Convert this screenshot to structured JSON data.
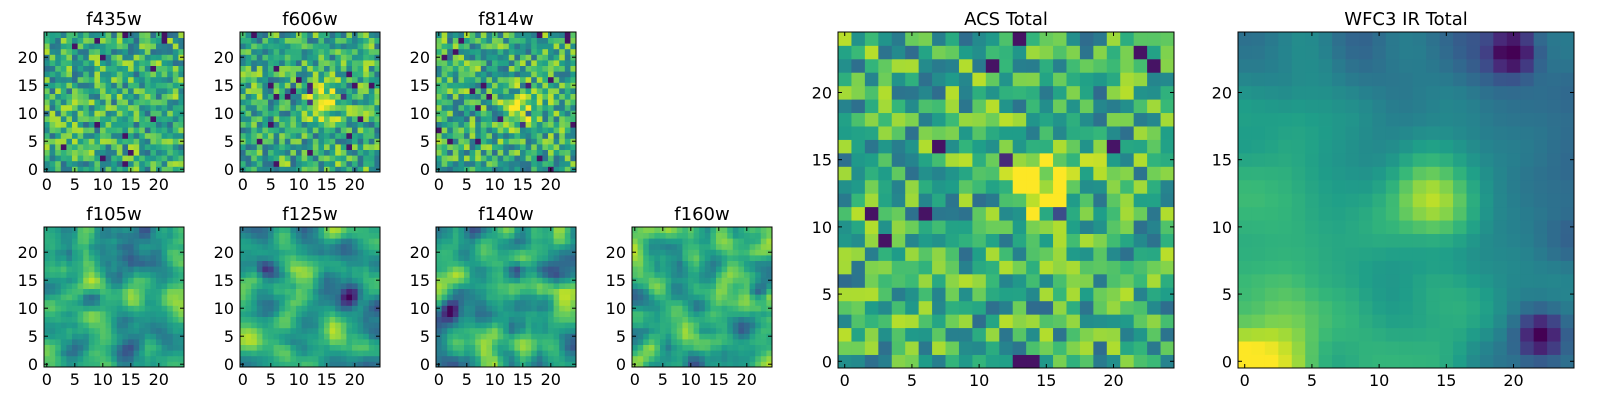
{
  "chart_data": [
    {
      "type": "heatmap",
      "title": "f435w",
      "xlim": [
        0,
        24
      ],
      "ylim": [
        0,
        24
      ],
      "x_ticks": [
        "0",
        "5",
        "10",
        "15",
        "20"
      ],
      "y_ticks": [
        "0",
        "5",
        "10",
        "15",
        "20"
      ],
      "smoothness": 0,
      "hot_spots": [],
      "cold_spots": [],
      "seed": 11
    },
    {
      "type": "heatmap",
      "title": "f606w",
      "xlim": [
        0,
        24
      ],
      "ylim": [
        0,
        24
      ],
      "x_ticks": [
        "0",
        "5",
        "10",
        "15",
        "20"
      ],
      "y_ticks": [
        "0",
        "5",
        "10",
        "15",
        "20"
      ],
      "smoothness": 0,
      "hot_spots": [
        [
          15,
          12
        ]
      ],
      "cold_spots": [],
      "seed": 23
    },
    {
      "type": "heatmap",
      "title": "f814w",
      "xlim": [
        0,
        24
      ],
      "ylim": [
        0,
        24
      ],
      "x_ticks": [
        "0",
        "5",
        "10",
        "15",
        "20"
      ],
      "y_ticks": [
        "0",
        "5",
        "10",
        "15",
        "20"
      ],
      "smoothness": 0,
      "hot_spots": [
        [
          15,
          11
        ]
      ],
      "cold_spots": [],
      "seed": 37
    },
    {
      "type": "heatmap",
      "title": "f105w",
      "xlim": [
        0,
        24
      ],
      "ylim": [
        0,
        24
      ],
      "x_ticks": [
        "0",
        "5",
        "10",
        "15",
        "20"
      ],
      "y_ticks": [
        "0",
        "5",
        "10",
        "15",
        "20"
      ],
      "smoothness": 2,
      "hot_spots": [],
      "cold_spots": [],
      "seed": 41
    },
    {
      "type": "heatmap",
      "title": "f125w",
      "xlim": [
        0,
        24
      ],
      "ylim": [
        0,
        24
      ],
      "x_ticks": [
        "0",
        "5",
        "10",
        "15",
        "20"
      ],
      "y_ticks": [
        "0",
        "5",
        "10",
        "15",
        "20"
      ],
      "smoothness": 2,
      "hot_spots": [],
      "cold_spots": [
        [
          19,
          12
        ],
        [
          4,
          17
        ]
      ],
      "seed": 53
    },
    {
      "type": "heatmap",
      "title": "f140w",
      "xlim": [
        0,
        24
      ],
      "ylim": [
        0,
        24
      ],
      "x_ticks": [
        "0",
        "5",
        "10",
        "15",
        "20"
      ],
      "y_ticks": [
        "0",
        "5",
        "10",
        "15",
        "20"
      ],
      "smoothness": 2,
      "hot_spots": [],
      "cold_spots": [
        [
          2,
          10
        ],
        [
          14,
          17
        ]
      ],
      "seed": 67
    },
    {
      "type": "heatmap",
      "title": "f160w",
      "xlim": [
        0,
        24
      ],
      "ylim": [
        0,
        24
      ],
      "x_ticks": [
        "0",
        "5",
        "10",
        "15",
        "20"
      ],
      "y_ticks": [
        "0",
        "5",
        "10",
        "15",
        "20"
      ],
      "smoothness": 2,
      "hot_spots": [
        [
          1,
          2
        ]
      ],
      "cold_spots": [
        [
          22,
          13
        ]
      ],
      "seed": 79
    },
    {
      "type": "heatmap",
      "title": "ACS Total",
      "xlim": [
        0,
        24
      ],
      "ylim": [
        0,
        24
      ],
      "x_ticks": [
        "0",
        "5",
        "10",
        "15",
        "20"
      ],
      "y_ticks": [
        "0",
        "5",
        "10",
        "15",
        "20"
      ],
      "smoothness": 0,
      "hot_spots": [
        [
          15,
          13
        ]
      ],
      "cold_spots": [],
      "seed": 97
    },
    {
      "type": "heatmap",
      "title": "WFC3 IR Total",
      "xlim": [
        0,
        24
      ],
      "ylim": [
        0,
        24
      ],
      "x_ticks": [
        "0",
        "5",
        "10",
        "15",
        "20"
      ],
      "y_ticks": [
        "0",
        "5",
        "10",
        "15",
        "20"
      ],
      "smoothness": 3,
      "gradient": true,
      "hot_spots": [
        [
          0,
          0
        ],
        [
          14,
          12
        ]
      ],
      "cold_spots": [
        [
          20,
          23
        ],
        [
          22,
          2
        ]
      ],
      "seed": 101
    }
  ],
  "colors": {
    "viridis": [
      "#440154",
      "#482878",
      "#3e4989",
      "#31688e",
      "#26828e",
      "#1f9e89",
      "#35b779",
      "#6ece58",
      "#b5de2b",
      "#fde725"
    ],
    "axis": "#000000",
    "background": "#ffffff"
  }
}
